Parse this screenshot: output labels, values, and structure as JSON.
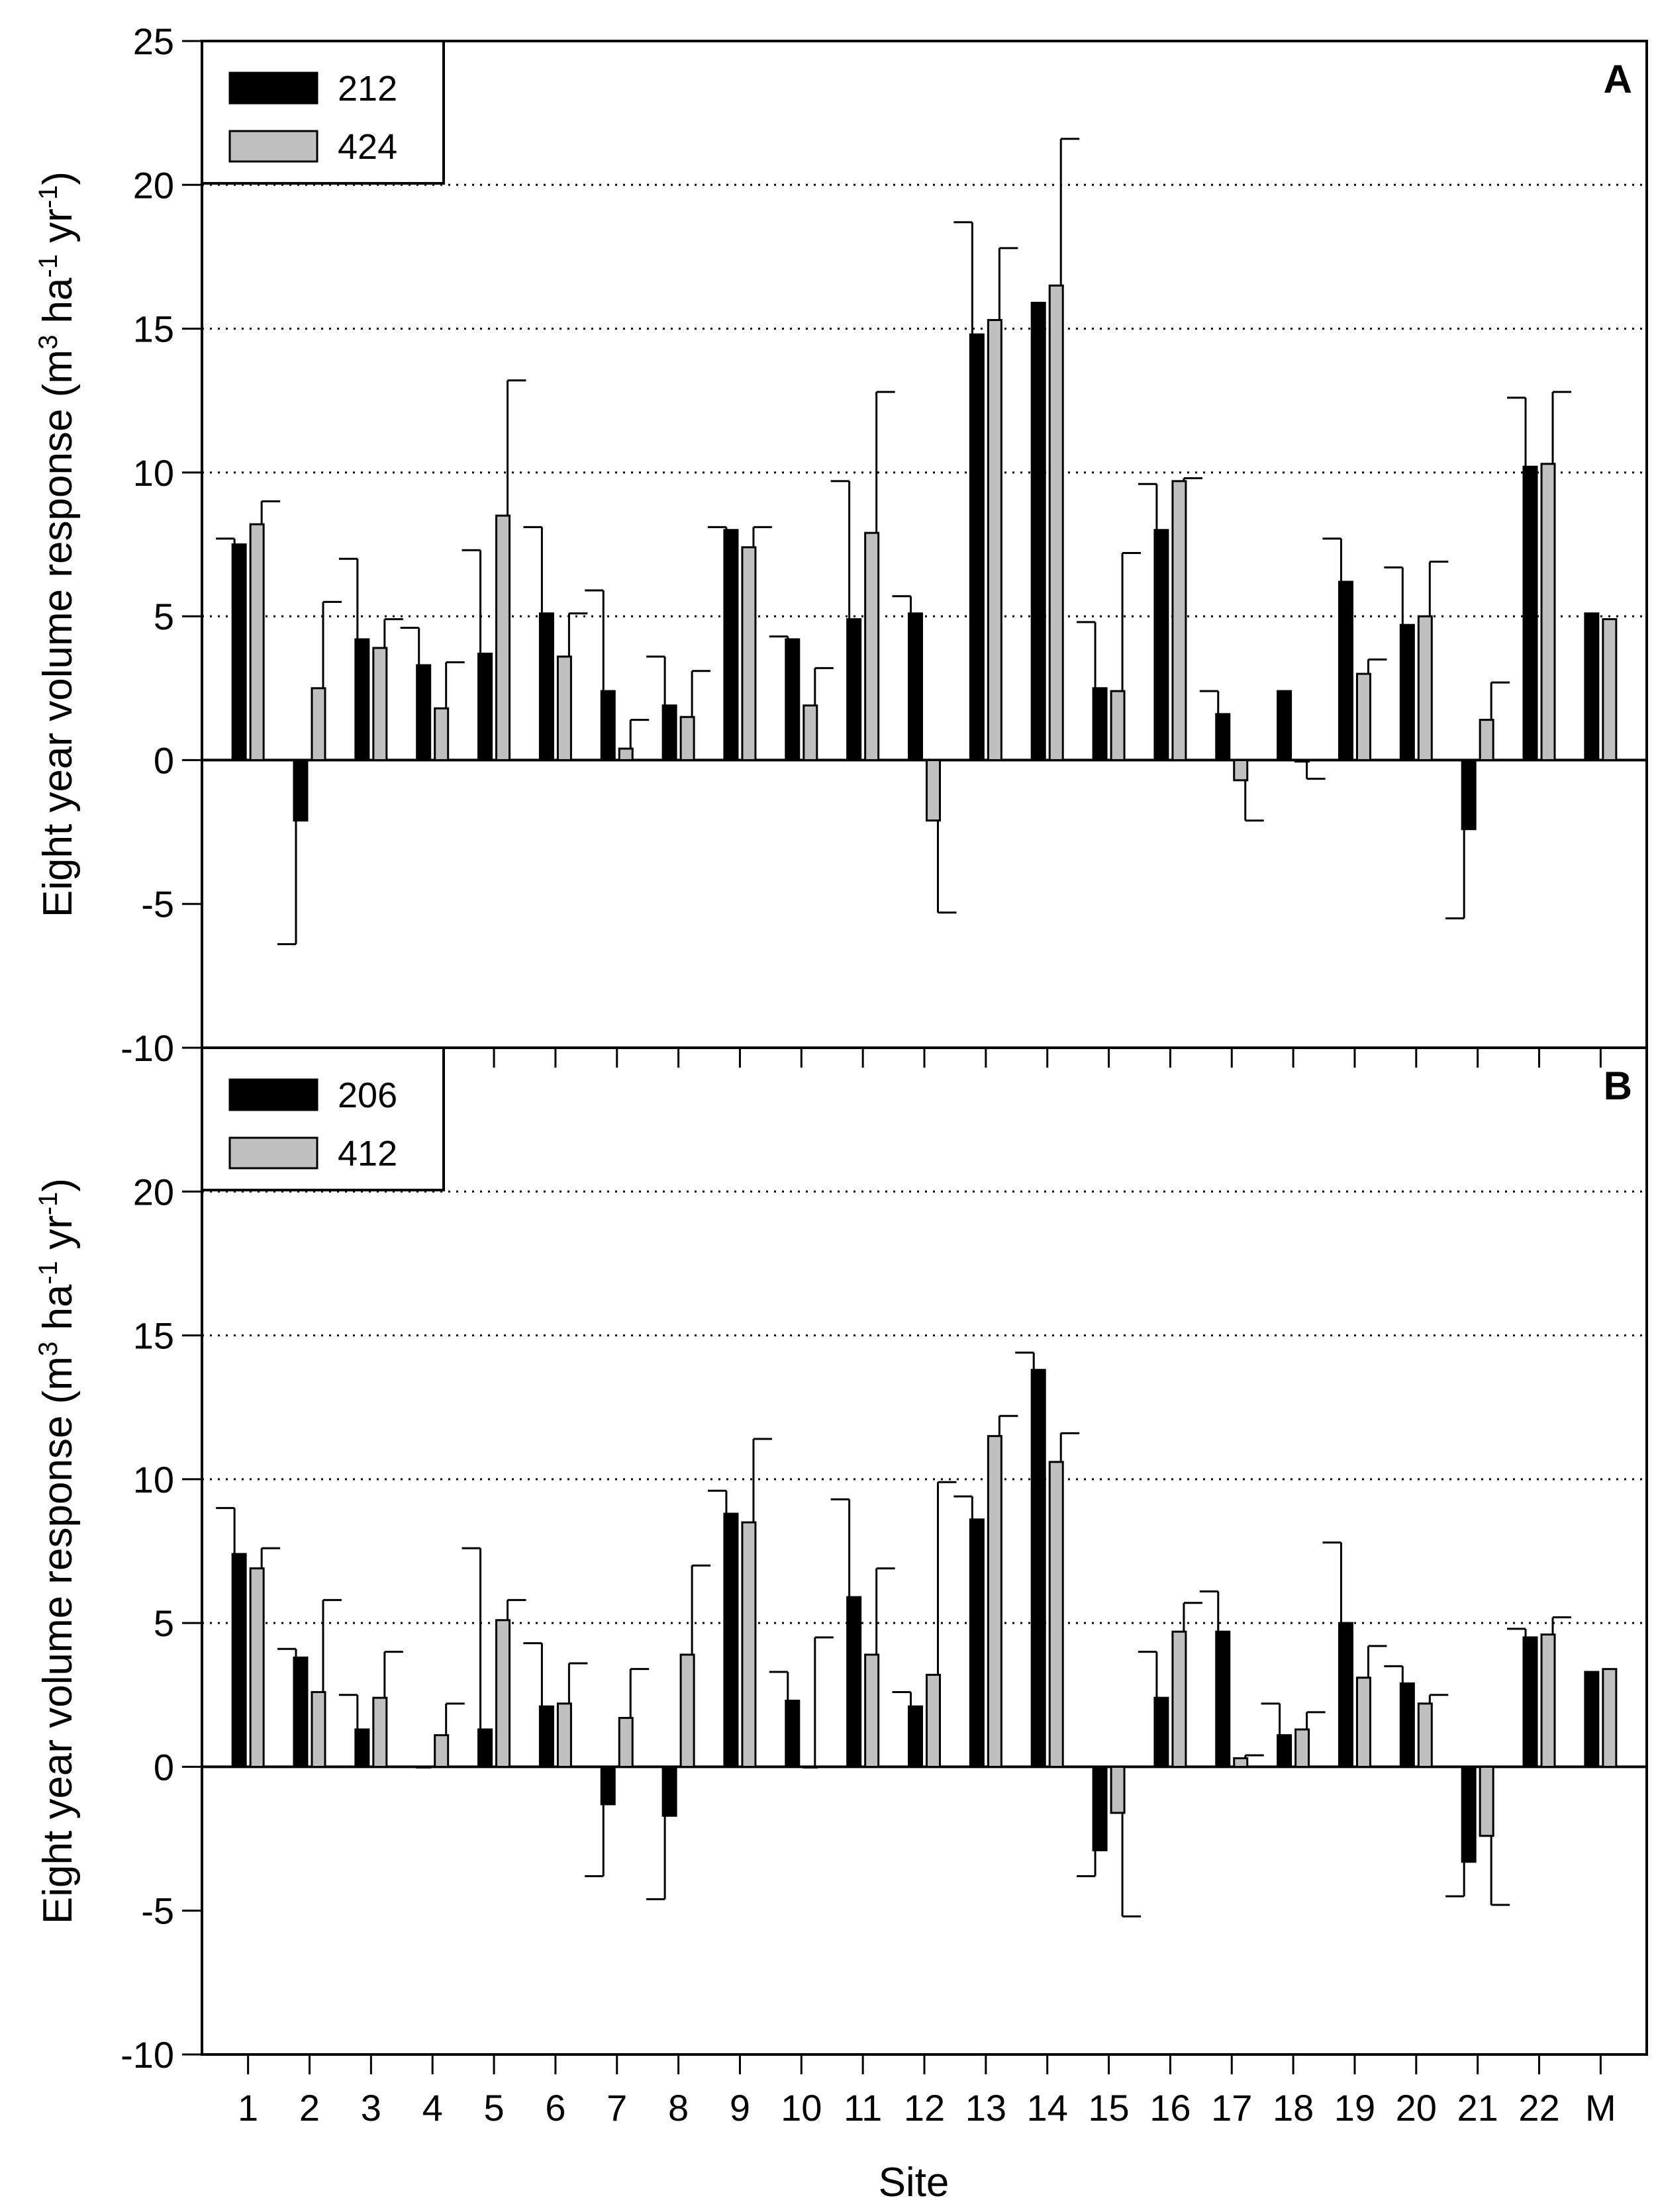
{
  "colors": {
    "series1": "#000000",
    "series2": "#c0c0c0",
    "grid": "#000000",
    "axis": "#000000"
  },
  "chart_data": [
    {
      "type": "bar",
      "panel_label": "A",
      "title": "",
      "xlabel": "",
      "ylabel": "Eight year volume response (m3 ha-1 yr-1)",
      "ylabel_parts": {
        "main": "Eight year volume response (m",
        "sup1": "3",
        "mid1": " ha",
        "sup2": "-1",
        "mid2": " yr",
        "sup3": "-1",
        "end": ")"
      },
      "ylim": [
        -10,
        25
      ],
      "yticks": [
        "-10",
        "-5",
        "0",
        "5",
        "10",
        "15",
        "20",
        "25"
      ],
      "legend_position": "top-left",
      "categories": [
        "1",
        "2",
        "3",
        "4",
        "5",
        "6",
        "7",
        "8",
        "9",
        "10",
        "11",
        "12",
        "13",
        "14",
        "15",
        "16",
        "17",
        "18",
        "19",
        "20",
        "21",
        "22",
        "M"
      ],
      "series": [
        {
          "name": "212",
          "values": [
            7.5,
            -2.1,
            4.2,
            3.3,
            3.7,
            5.1,
            2.4,
            1.9,
            8.0,
            4.2,
            4.9,
            5.1,
            14.8,
            15.9,
            2.5,
            8.0,
            1.6,
            2.4,
            6.2,
            4.7,
            -2.4,
            10.2,
            5.1
          ],
          "errors": [
            0.2,
            4.3,
            2.8,
            1.3,
            3.6,
            3.0,
            3.5,
            1.7,
            0.1,
            0.1,
            4.8,
            0.6,
            3.9,
            0.0,
            2.3,
            1.6,
            0.8,
            0.0,
            1.5,
            2.0,
            3.1,
            2.4,
            0.0
          ]
        },
        {
          "name": "424",
          "values": [
            8.2,
            2.5,
            3.9,
            1.8,
            8.5,
            3.6,
            0.4,
            1.5,
            7.4,
            1.9,
            7.9,
            -2.1,
            15.3,
            16.5,
            2.4,
            9.7,
            -0.7,
            -0.05,
            3.0,
            5.0,
            1.4,
            10.3,
            4.9
          ],
          "errors": [
            0.8,
            3.0,
            1.0,
            1.6,
            4.7,
            1.5,
            1.0,
            1.6,
            0.7,
            1.3,
            4.9,
            3.2,
            2.5,
            5.1,
            4.8,
            0.1,
            1.4,
            0.6,
            0.5,
            1.9,
            1.3,
            2.5,
            0.0
          ]
        }
      ]
    },
    {
      "type": "bar",
      "panel_label": "B",
      "title": "",
      "xlabel": "Site",
      "ylabel": "Eight year volume response (m3 ha-1 yr-1)",
      "ylabel_parts": {
        "main": "Eight year volume response (m",
        "sup1": "3",
        "mid1": " ha",
        "sup2": "-1",
        "mid2": " yr",
        "sup3": "-1",
        "end": ")"
      },
      "ylim": [
        -10,
        25
      ],
      "yticks": [
        "-10",
        "-5",
        "0",
        "5",
        "10",
        "15",
        "20"
      ],
      "legend_position": "top-left",
      "categories": [
        "1",
        "2",
        "3",
        "4",
        "5",
        "6",
        "7",
        "8",
        "9",
        "10",
        "11",
        "12",
        "13",
        "14",
        "15",
        "16",
        "17",
        "18",
        "19",
        "20",
        "21",
        "22",
        "M"
      ],
      "series": [
        {
          "name": "206",
          "values": [
            7.4,
            3.8,
            1.3,
            0.0,
            1.3,
            2.1,
            -1.3,
            -1.7,
            8.8,
            2.3,
            5.9,
            2.1,
            8.6,
            13.8,
            -2.9,
            2.4,
            4.7,
            1.1,
            5.0,
            2.9,
            -3.3,
            4.5,
            3.3
          ],
          "errors": [
            1.6,
            0.3,
            1.2,
            0.0,
            6.3,
            2.2,
            2.5,
            2.9,
            0.8,
            1.0,
            3.4,
            0.5,
            0.8,
            0.6,
            0.9,
            1.6,
            1.4,
            1.1,
            2.8,
            0.6,
            1.2,
            0.3,
            0.0
          ]
        },
        {
          "name": "412",
          "values": [
            6.9,
            2.6,
            2.4,
            1.1,
            5.1,
            2.2,
            1.7,
            3.9,
            8.5,
            0.0,
            3.9,
            3.2,
            11.5,
            10.6,
            -1.6,
            4.7,
            0.3,
            1.3,
            3.1,
            2.2,
            -2.4,
            4.6,
            3.4
          ],
          "errors": [
            0.7,
            3.2,
            1.6,
            1.1,
            0.7,
            1.4,
            1.7,
            3.1,
            2.9,
            4.5,
            3.0,
            6.7,
            0.7,
            1.0,
            3.6,
            1.0,
            0.1,
            0.6,
            1.1,
            0.3,
            2.4,
            0.6,
            0.0
          ]
        }
      ]
    }
  ],
  "site_axis_title": "Site"
}
